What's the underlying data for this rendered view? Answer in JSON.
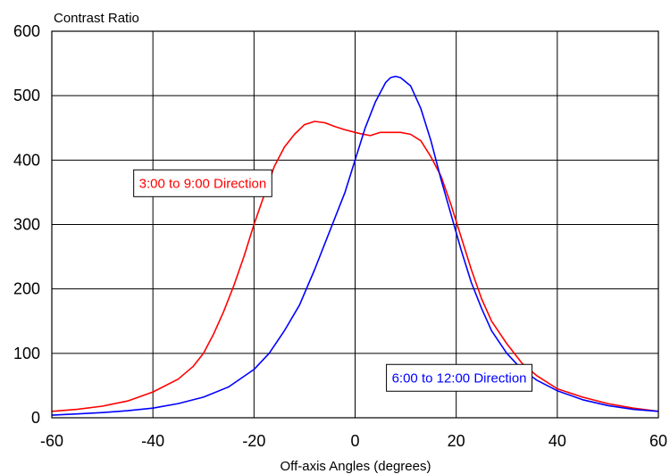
{
  "chart_data": {
    "type": "line",
    "title": "",
    "ylabel": "Contrast Ratio",
    "xlabel": "Off-axis Angles (degrees)",
    "xlim": [
      -60,
      60
    ],
    "ylim": [
      0,
      600
    ],
    "x_ticks": [
      "-60",
      "-40",
      "-20",
      "0",
      "20",
      "40",
      "60"
    ],
    "y_ticks": [
      "0",
      "100",
      "200",
      "300",
      "400",
      "500",
      "600"
    ],
    "grid": true,
    "series": [
      {
        "name": "3:00 to 9:00 Direction",
        "color": "#ff0000",
        "points": [
          [
            -60,
            10
          ],
          [
            -55,
            13
          ],
          [
            -50,
            18
          ],
          [
            -45,
            26
          ],
          [
            -40,
            40
          ],
          [
            -35,
            60
          ],
          [
            -32,
            80
          ],
          [
            -30,
            100
          ],
          [
            -28,
            130
          ],
          [
            -26,
            165
          ],
          [
            -24,
            205
          ],
          [
            -22,
            250
          ],
          [
            -20,
            300
          ],
          [
            -18,
            345
          ],
          [
            -16,
            390
          ],
          [
            -14,
            420
          ],
          [
            -12,
            440
          ],
          [
            -10,
            455
          ],
          [
            -8,
            460
          ],
          [
            -6,
            458
          ],
          [
            -4,
            452
          ],
          [
            -2,
            447
          ],
          [
            0,
            443
          ],
          [
            1,
            441
          ],
          [
            3,
            438
          ],
          [
            5,
            443
          ],
          [
            7,
            443
          ],
          [
            9,
            443
          ],
          [
            11,
            440
          ],
          [
            13,
            430
          ],
          [
            15,
            405
          ],
          [
            17,
            375
          ],
          [
            19,
            330
          ],
          [
            21,
            280
          ],
          [
            23,
            230
          ],
          [
            25,
            185
          ],
          [
            27,
            150
          ],
          [
            30,
            115
          ],
          [
            33,
            85
          ],
          [
            36,
            65
          ],
          [
            40,
            45
          ],
          [
            45,
            32
          ],
          [
            50,
            22
          ],
          [
            55,
            15
          ],
          [
            60,
            10
          ]
        ]
      },
      {
        "name": "6:00 to 12:00 Direction",
        "color": "#0000ff",
        "points": [
          [
            -60,
            4
          ],
          [
            -55,
            6
          ],
          [
            -50,
            8
          ],
          [
            -45,
            11
          ],
          [
            -40,
            15
          ],
          [
            -35,
            22
          ],
          [
            -30,
            32
          ],
          [
            -25,
            48
          ],
          [
            -20,
            75
          ],
          [
            -17,
            100
          ],
          [
            -14,
            135
          ],
          [
            -11,
            175
          ],
          [
            -8,
            230
          ],
          [
            -5,
            290
          ],
          [
            -2,
            350
          ],
          [
            0,
            400
          ],
          [
            2,
            450
          ],
          [
            4,
            490
          ],
          [
            6,
            520
          ],
          [
            7,
            528
          ],
          [
            8,
            530
          ],
          [
            9,
            528
          ],
          [
            11,
            515
          ],
          [
            13,
            480
          ],
          [
            15,
            430
          ],
          [
            17,
            370
          ],
          [
            19,
            315
          ],
          [
            21,
            260
          ],
          [
            23,
            210
          ],
          [
            25,
            170
          ],
          [
            27,
            135
          ],
          [
            30,
            100
          ],
          [
            33,
            75
          ],
          [
            36,
            58
          ],
          [
            40,
            42
          ],
          [
            45,
            28
          ],
          [
            50,
            19
          ],
          [
            55,
            13
          ],
          [
            60,
            10
          ]
        ]
      }
    ],
    "annotations": [
      {
        "text": "3:00 to 9:00 Direction",
        "color": "#ff0000",
        "x": -43.8,
        "y": 364
      },
      {
        "text": "6:00 to 12:00 Direction",
        "color": "#0000ff",
        "x": 6.2,
        "y": 62
      }
    ]
  }
}
